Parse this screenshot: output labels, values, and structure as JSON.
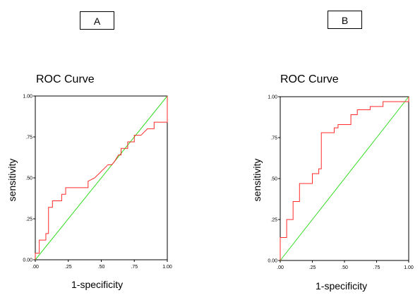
{
  "panels": {
    "a": {
      "label": "A"
    },
    "b": {
      "label": "B"
    }
  },
  "colors": {
    "roc": "#ff2a2a",
    "diagonal": "#33dd22",
    "frame": "#000000"
  },
  "chart_data": [
    {
      "type": "line",
      "title": "ROC Curve",
      "xlabel": "1-specificity",
      "ylabel": "sensitivity",
      "xlim": [
        0,
        1
      ],
      "ylim": [
        0,
        1
      ],
      "x_ticks": [
        ".00",
        ".25",
        ".50",
        ".75",
        "1.00"
      ],
      "y_ticks": [
        "0.00",
        ".25",
        ".50",
        ".75",
        "1.00"
      ],
      "grid": false,
      "series": [
        {
          "x": [
            0,
            0,
            0.03,
            0.03,
            0.08,
            0.08,
            0.1,
            0.1,
            0.13,
            0.13,
            0.2,
            0.2,
            0.23,
            0.23,
            0.4,
            0.4,
            0.45,
            0.5,
            0.55,
            0.58,
            0.6,
            0.6,
            0.63,
            0.65,
            0.65,
            0.7,
            0.7,
            0.75,
            0.75,
            0.8,
            0.85,
            0.85,
            0.9,
            0.9,
            0.93,
            0.93,
            1.0,
            1.0
          ],
          "y": [
            0,
            0.04,
            0.04,
            0.12,
            0.12,
            0.16,
            0.16,
            0.32,
            0.32,
            0.36,
            0.36,
            0.4,
            0.4,
            0.44,
            0.44,
            0.48,
            0.5,
            0.54,
            0.58,
            0.58,
            0.6,
            0.6,
            0.64,
            0.64,
            0.68,
            0.68,
            0.72,
            0.72,
            0.76,
            0.76,
            0.8,
            0.8,
            0.8,
            0.84,
            0.84,
            0.84,
            0.84,
            1.0
          ]
        },
        {
          "x": [
            0,
            1
          ],
          "y": [
            0,
            1
          ]
        }
      ]
    },
    {
      "type": "line",
      "title": "ROC Curve",
      "xlabel": "1-specificity",
      "ylabel": "sensitivity",
      "xlim": [
        0,
        1
      ],
      "ylim": [
        0,
        1
      ],
      "x_ticks": [
        ".00",
        ".25",
        ".50",
        ".75",
        "1.00"
      ],
      "y_ticks": [
        "0.00",
        ".25",
        ".50",
        ".75",
        "1.00"
      ],
      "grid": false,
      "series": [
        {
          "x": [
            0,
            0,
            0.05,
            0.05,
            0.1,
            0.1,
            0.15,
            0.15,
            0.2,
            0.2,
            0.25,
            0.25,
            0.3,
            0.3,
            0.32,
            0.32,
            0.42,
            0.42,
            0.45,
            0.45,
            0.48,
            0.48,
            0.55,
            0.55,
            0.6,
            0.6,
            0.65,
            0.65,
            0.7,
            0.7,
            0.75,
            0.75,
            0.8,
            0.8,
            0.85,
            0.85,
            1.0,
            1.0
          ],
          "y": [
            0,
            0.14,
            0.14,
            0.25,
            0.25,
            0.36,
            0.36,
            0.47,
            0.47,
            0.47,
            0.47,
            0.53,
            0.53,
            0.56,
            0.56,
            0.78,
            0.78,
            0.81,
            0.81,
            0.83,
            0.83,
            0.83,
            0.83,
            0.89,
            0.89,
            0.92,
            0.92,
            0.92,
            0.92,
            0.94,
            0.94,
            0.94,
            0.94,
            0.97,
            0.97,
            0.97,
            0.97,
            1.0
          ]
        },
        {
          "x": [
            0,
            1
          ],
          "y": [
            0,
            1
          ]
        }
      ]
    }
  ]
}
